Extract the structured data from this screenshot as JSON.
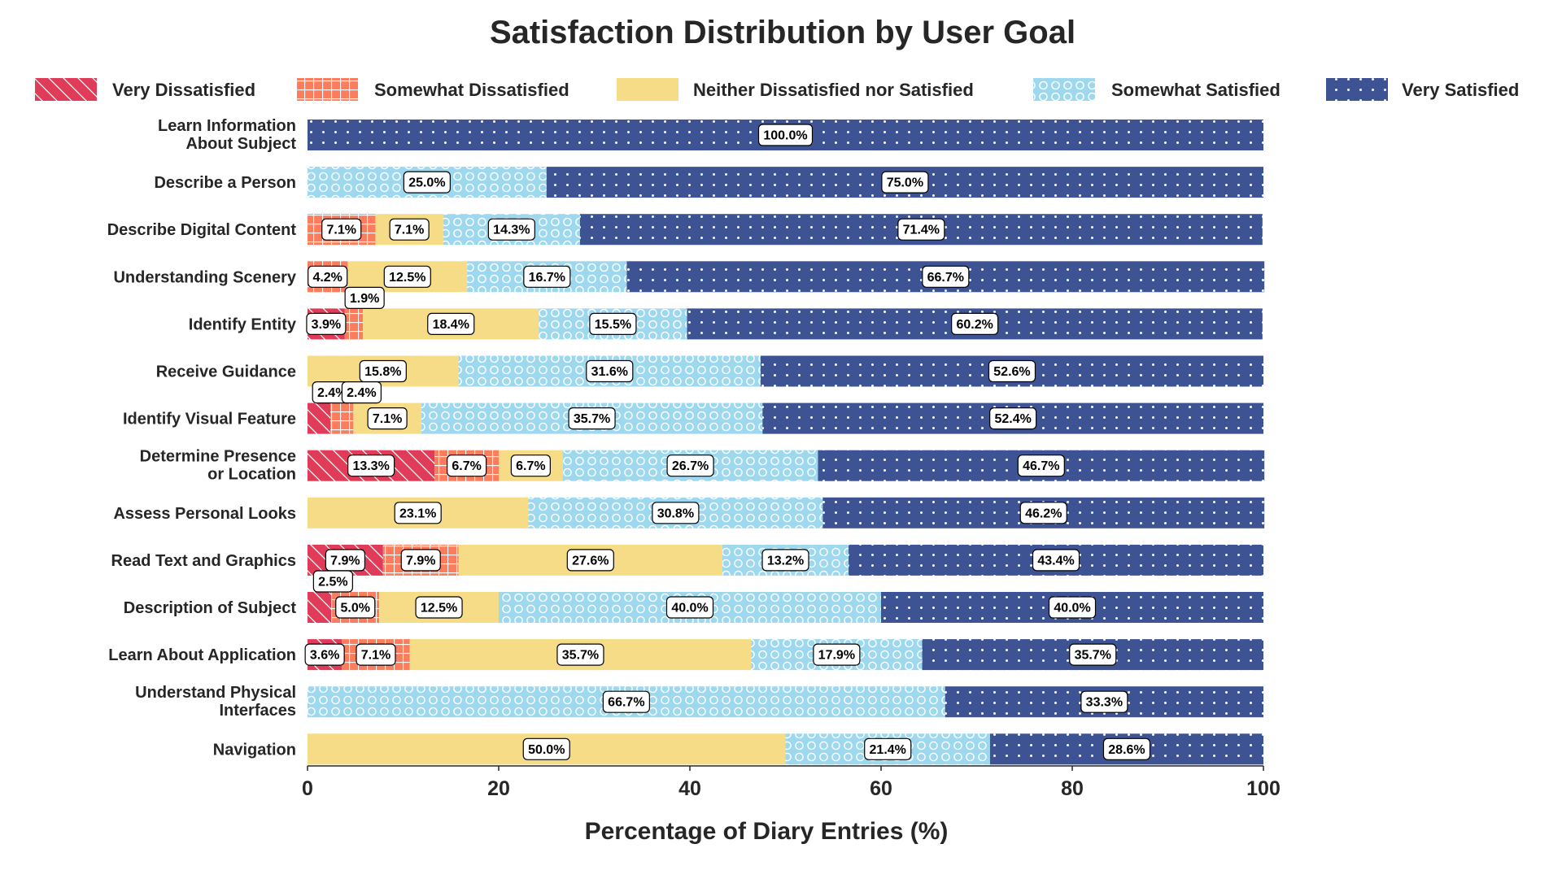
{
  "chart_data": {
    "type": "bar",
    "orientation": "horizontal",
    "stacked": true,
    "title": "Satisfaction Distribution by User Goal",
    "xlabel": "Percentage of Diary Entries (%)",
    "ylabel": "",
    "xlim": [
      0,
      100
    ],
    "xticks": [
      0,
      20,
      40,
      60,
      80,
      100
    ],
    "legend_position": "top",
    "categories": [
      [
        "Learn Information",
        "About Subject"
      ],
      [
        "Describe a Person"
      ],
      [
        "Describe Digital Content"
      ],
      [
        "Understanding Scenery"
      ],
      [
        "Identify Entity"
      ],
      [
        "Receive Guidance"
      ],
      [
        "Identify Visual Feature"
      ],
      [
        "Determine Presence",
        "or Location"
      ],
      [
        "Assess Personal Looks"
      ],
      [
        "Read Text and Graphics"
      ],
      [
        "Description of Subject"
      ],
      [
        "Learn About Application"
      ],
      [
        "Understand Physical",
        "Interfaces"
      ],
      [
        "Navigation"
      ]
    ],
    "series": [
      {
        "name": "Very Dissatisfied",
        "color": "#e03c5a",
        "pattern": "diagonal-hatch",
        "values": [
          0,
          0,
          0,
          0,
          3.9,
          0,
          2.4,
          13.3,
          0,
          7.9,
          2.5,
          3.6,
          0,
          0
        ]
      },
      {
        "name": "Somewhat Dissatisfied",
        "color": "#fb7d5e",
        "pattern": "grid",
        "values": [
          0,
          0,
          7.1,
          4.2,
          1.9,
          0,
          2.4,
          6.7,
          0,
          7.9,
          5.0,
          7.1,
          0,
          0
        ]
      },
      {
        "name": "Neither Dissatisfied nor Satisfied",
        "color": "#f7dc87",
        "pattern": "solid",
        "values": [
          0,
          0,
          7.1,
          12.5,
          18.4,
          15.8,
          7.1,
          6.7,
          23.1,
          27.6,
          12.5,
          35.7,
          0,
          50.0
        ]
      },
      {
        "name": "Somewhat Satisfied",
        "color": "#9dd8ef",
        "pattern": "circles",
        "values": [
          0,
          25.0,
          14.3,
          16.7,
          15.5,
          31.6,
          35.7,
          26.7,
          30.8,
          13.2,
          40.0,
          17.9,
          66.7,
          21.4
        ]
      },
      {
        "name": "Very Satisfied",
        "color": "#3d5393",
        "pattern": "dots",
        "values": [
          100.0,
          75.0,
          71.4,
          66.7,
          60.2,
          52.6,
          52.4,
          46.7,
          46.2,
          43.4,
          40.0,
          35.7,
          33.3,
          28.6
        ]
      }
    ]
  }
}
